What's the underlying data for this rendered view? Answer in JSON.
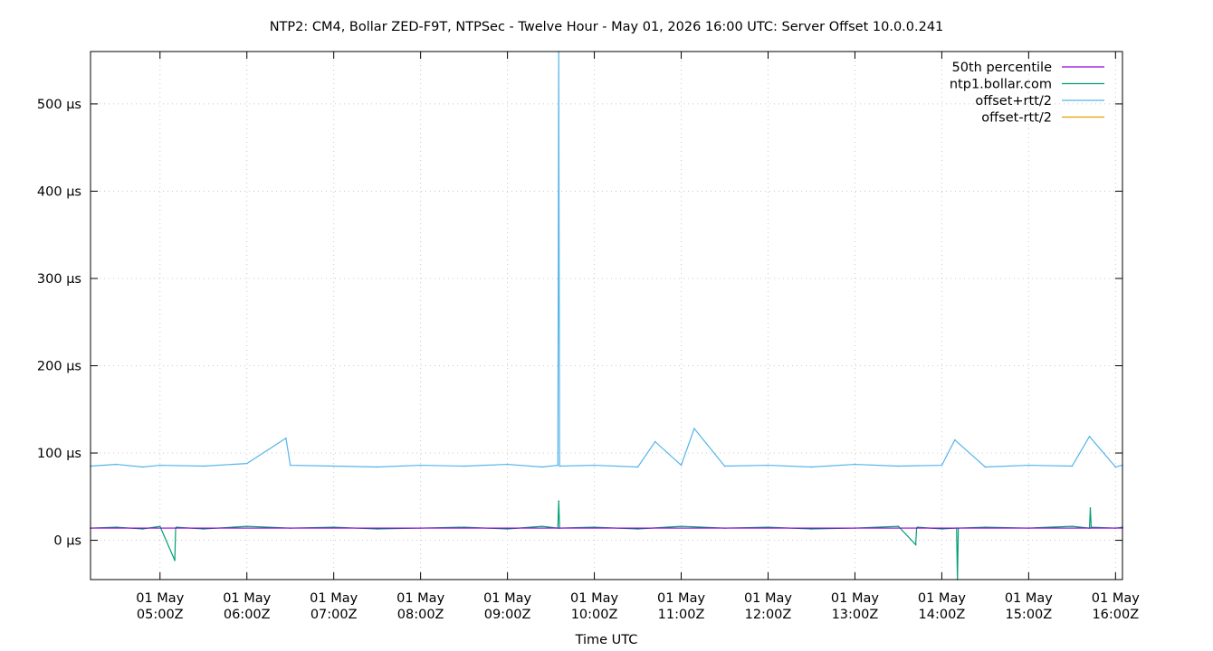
{
  "chart_data": {
    "type": "line",
    "title": "NTP2: CM4, Bollar ZED-F9T, NTPSec - Twelve Hour - May 01, 2026 16:00 UTC: Server Offset 10.0.0.241",
    "xlabel": "Time UTC",
    "ylabel": "",
    "x_unit": "hours UTC on 01 May 2026",
    "xlim": [
      4.2,
      16.08
    ],
    "ylim": [
      -45,
      560
    ],
    "grid": true,
    "legend_position": "top-right",
    "y_ticks": [
      {
        "value": 0,
        "label": "0 µs"
      },
      {
        "value": 100,
        "label": "100 µs"
      },
      {
        "value": 200,
        "label": "200 µs"
      },
      {
        "value": 300,
        "label": "300 µs"
      },
      {
        "value": 400,
        "label": "400 µs"
      },
      {
        "value": 500,
        "label": "500 µs"
      }
    ],
    "x_ticks": [
      {
        "value": 5,
        "line1": "01 May",
        "line2": "05:00Z"
      },
      {
        "value": 6,
        "line1": "01 May",
        "line2": "06:00Z"
      },
      {
        "value": 7,
        "line1": "01 May",
        "line2": "07:00Z"
      },
      {
        "value": 8,
        "line1": "01 May",
        "line2": "08:00Z"
      },
      {
        "value": 9,
        "line1": "01 May",
        "line2": "09:00Z"
      },
      {
        "value": 10,
        "line1": "01 May",
        "line2": "10:00Z"
      },
      {
        "value": 11,
        "line1": "01 May",
        "line2": "11:00Z"
      },
      {
        "value": 12,
        "line1": "01 May",
        "line2": "12:00Z"
      },
      {
        "value": 13,
        "line1": "01 May",
        "line2": "13:00Z"
      },
      {
        "value": 14,
        "line1": "01 May",
        "line2": "14:00Z"
      },
      {
        "value": 15,
        "line1": "01 May",
        "line2": "15:00Z"
      },
      {
        "value": 16,
        "line1": "01 May",
        "line2": "16:00Z"
      }
    ],
    "series": [
      {
        "name": "50th percentile",
        "color": "#9400d3",
        "x": [
          4.2,
          16.08
        ],
        "y": [
          14,
          14
        ]
      },
      {
        "name": "ntp1.bollar.com",
        "color": "#009e73",
        "x": [
          4.2,
          4.5,
          4.8,
          5.0,
          5.17,
          5.18,
          5.19,
          5.5,
          6.0,
          6.5,
          7.0,
          7.5,
          8.0,
          8.5,
          9.0,
          9.4,
          9.58,
          9.59,
          9.6,
          10.0,
          10.5,
          11.0,
          11.5,
          12.0,
          12.5,
          13.0,
          13.5,
          13.7,
          13.71,
          13.72,
          14.0,
          14.17,
          14.18,
          14.19,
          14.5,
          15.0,
          15.5,
          15.7,
          15.71,
          15.72,
          16.0,
          16.08
        ],
        "y": [
          14,
          15,
          13,
          16,
          -23,
          14,
          15,
          13,
          16,
          14,
          15,
          13,
          14,
          15,
          13,
          16,
          14,
          45,
          14,
          15,
          13,
          16,
          14,
          15,
          13,
          14,
          16,
          -5,
          14,
          15,
          13,
          14,
          -45,
          14,
          15,
          14,
          16,
          14,
          37,
          15,
          14,
          15
        ]
      },
      {
        "name": "offset+rtt/2",
        "color": "#56b4e9",
        "x": [
          4.2,
          4.5,
          4.8,
          5.0,
          5.5,
          6.0,
          6.45,
          6.5,
          7.0,
          7.5,
          8.0,
          8.5,
          9.0,
          9.4,
          9.58,
          9.59,
          9.6,
          10.0,
          10.5,
          10.7,
          11.0,
          11.15,
          11.5,
          12.0,
          12.5,
          13.0,
          13.5,
          14.0,
          14.15,
          14.5,
          15.0,
          15.5,
          15.7,
          16.0,
          16.08
        ],
        "y": [
          85,
          87,
          84,
          86,
          85,
          88,
          117,
          86,
          85,
          84,
          86,
          85,
          87,
          84,
          86,
          560,
          85,
          86,
          84,
          113,
          86,
          128,
          85,
          86,
          84,
          87,
          85,
          86,
          115,
          84,
          86,
          85,
          119,
          84,
          86
        ]
      },
      {
        "name": "offset-rtt/2",
        "color": "#e69f00",
        "x": [],
        "y": []
      }
    ]
  }
}
